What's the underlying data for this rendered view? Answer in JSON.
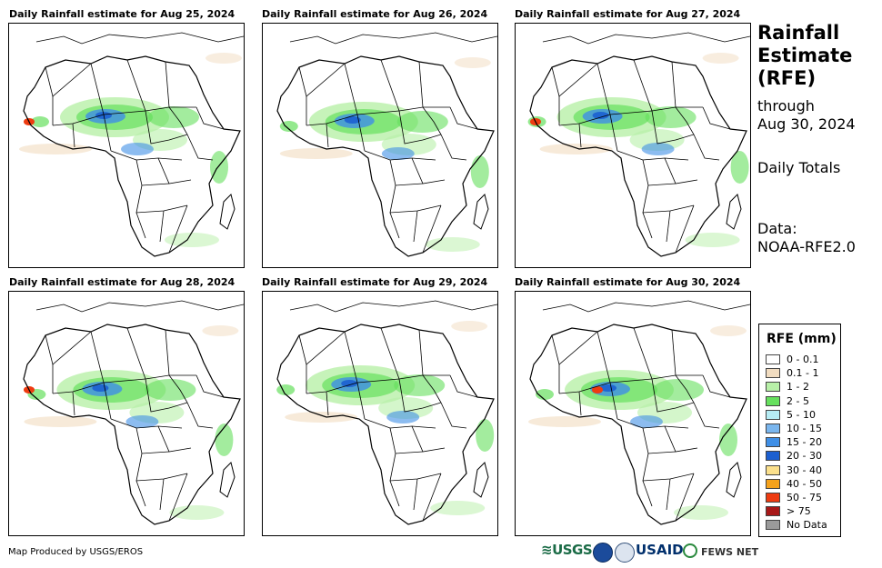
{
  "panels": [
    {
      "title": "Daily Rainfall estimate for Aug 25, 2024"
    },
    {
      "title": "Daily Rainfall estimate for Aug 26, 2024"
    },
    {
      "title": "Daily Rainfall estimate for Aug 27, 2024"
    },
    {
      "title": "Daily Rainfall estimate for Aug 28, 2024"
    },
    {
      "title": "Daily Rainfall estimate for Aug 29, 2024"
    },
    {
      "title": "Daily Rainfall estimate for Aug 30, 2024"
    }
  ],
  "side": {
    "title_line1": "Rainfall",
    "title_line2": "Estimate",
    "title_line3": "(RFE)",
    "through": "through",
    "date": "Aug 30, 2024",
    "totals": "Daily Totals",
    "data_label": "Data:",
    "data_source": "NOAA-RFE2.0"
  },
  "legend": {
    "title": "RFE (mm)",
    "items": [
      {
        "label": "0 - 0.1",
        "color": "#ffffff"
      },
      {
        "label": "0.1 - 1",
        "color": "#f1dcc0"
      },
      {
        "label": "1 - 2",
        "color": "#b8f0a8"
      },
      {
        "label": "2 - 5",
        "color": "#66e05e"
      },
      {
        "label": "5 - 10",
        "color": "#b6ecf4"
      },
      {
        "label": "10 - 15",
        "color": "#7ab6ee"
      },
      {
        "label": "15 - 20",
        "color": "#3f8fe6"
      },
      {
        "label": "20 - 30",
        "color": "#1c5fd0"
      },
      {
        "label": "30 - 40",
        "color": "#fbe08c"
      },
      {
        "label": "40 - 50",
        "color": "#f5a21c"
      },
      {
        "label": "50 - 75",
        "color": "#ee3b10"
      },
      {
        "label": "> 75",
        "color": "#a81818"
      },
      {
        "label": "No Data",
        "color": "#9a9a9a"
      }
    ]
  },
  "footer": {
    "credit": "Map Produced by USGS/EROS",
    "logo_usgs": "≋USGS",
    "logo_usaid": "USAID",
    "logo_fews": "FEWS NET"
  },
  "colors": {
    "rain_light": "#b8f0a8",
    "rain_green": "#66e05e",
    "rain_blue": "#3f8fe6",
    "rain_dark_blue": "#1c5fd0",
    "rain_red": "#ee3b10",
    "rain_tan": "#f1dcc0"
  }
}
